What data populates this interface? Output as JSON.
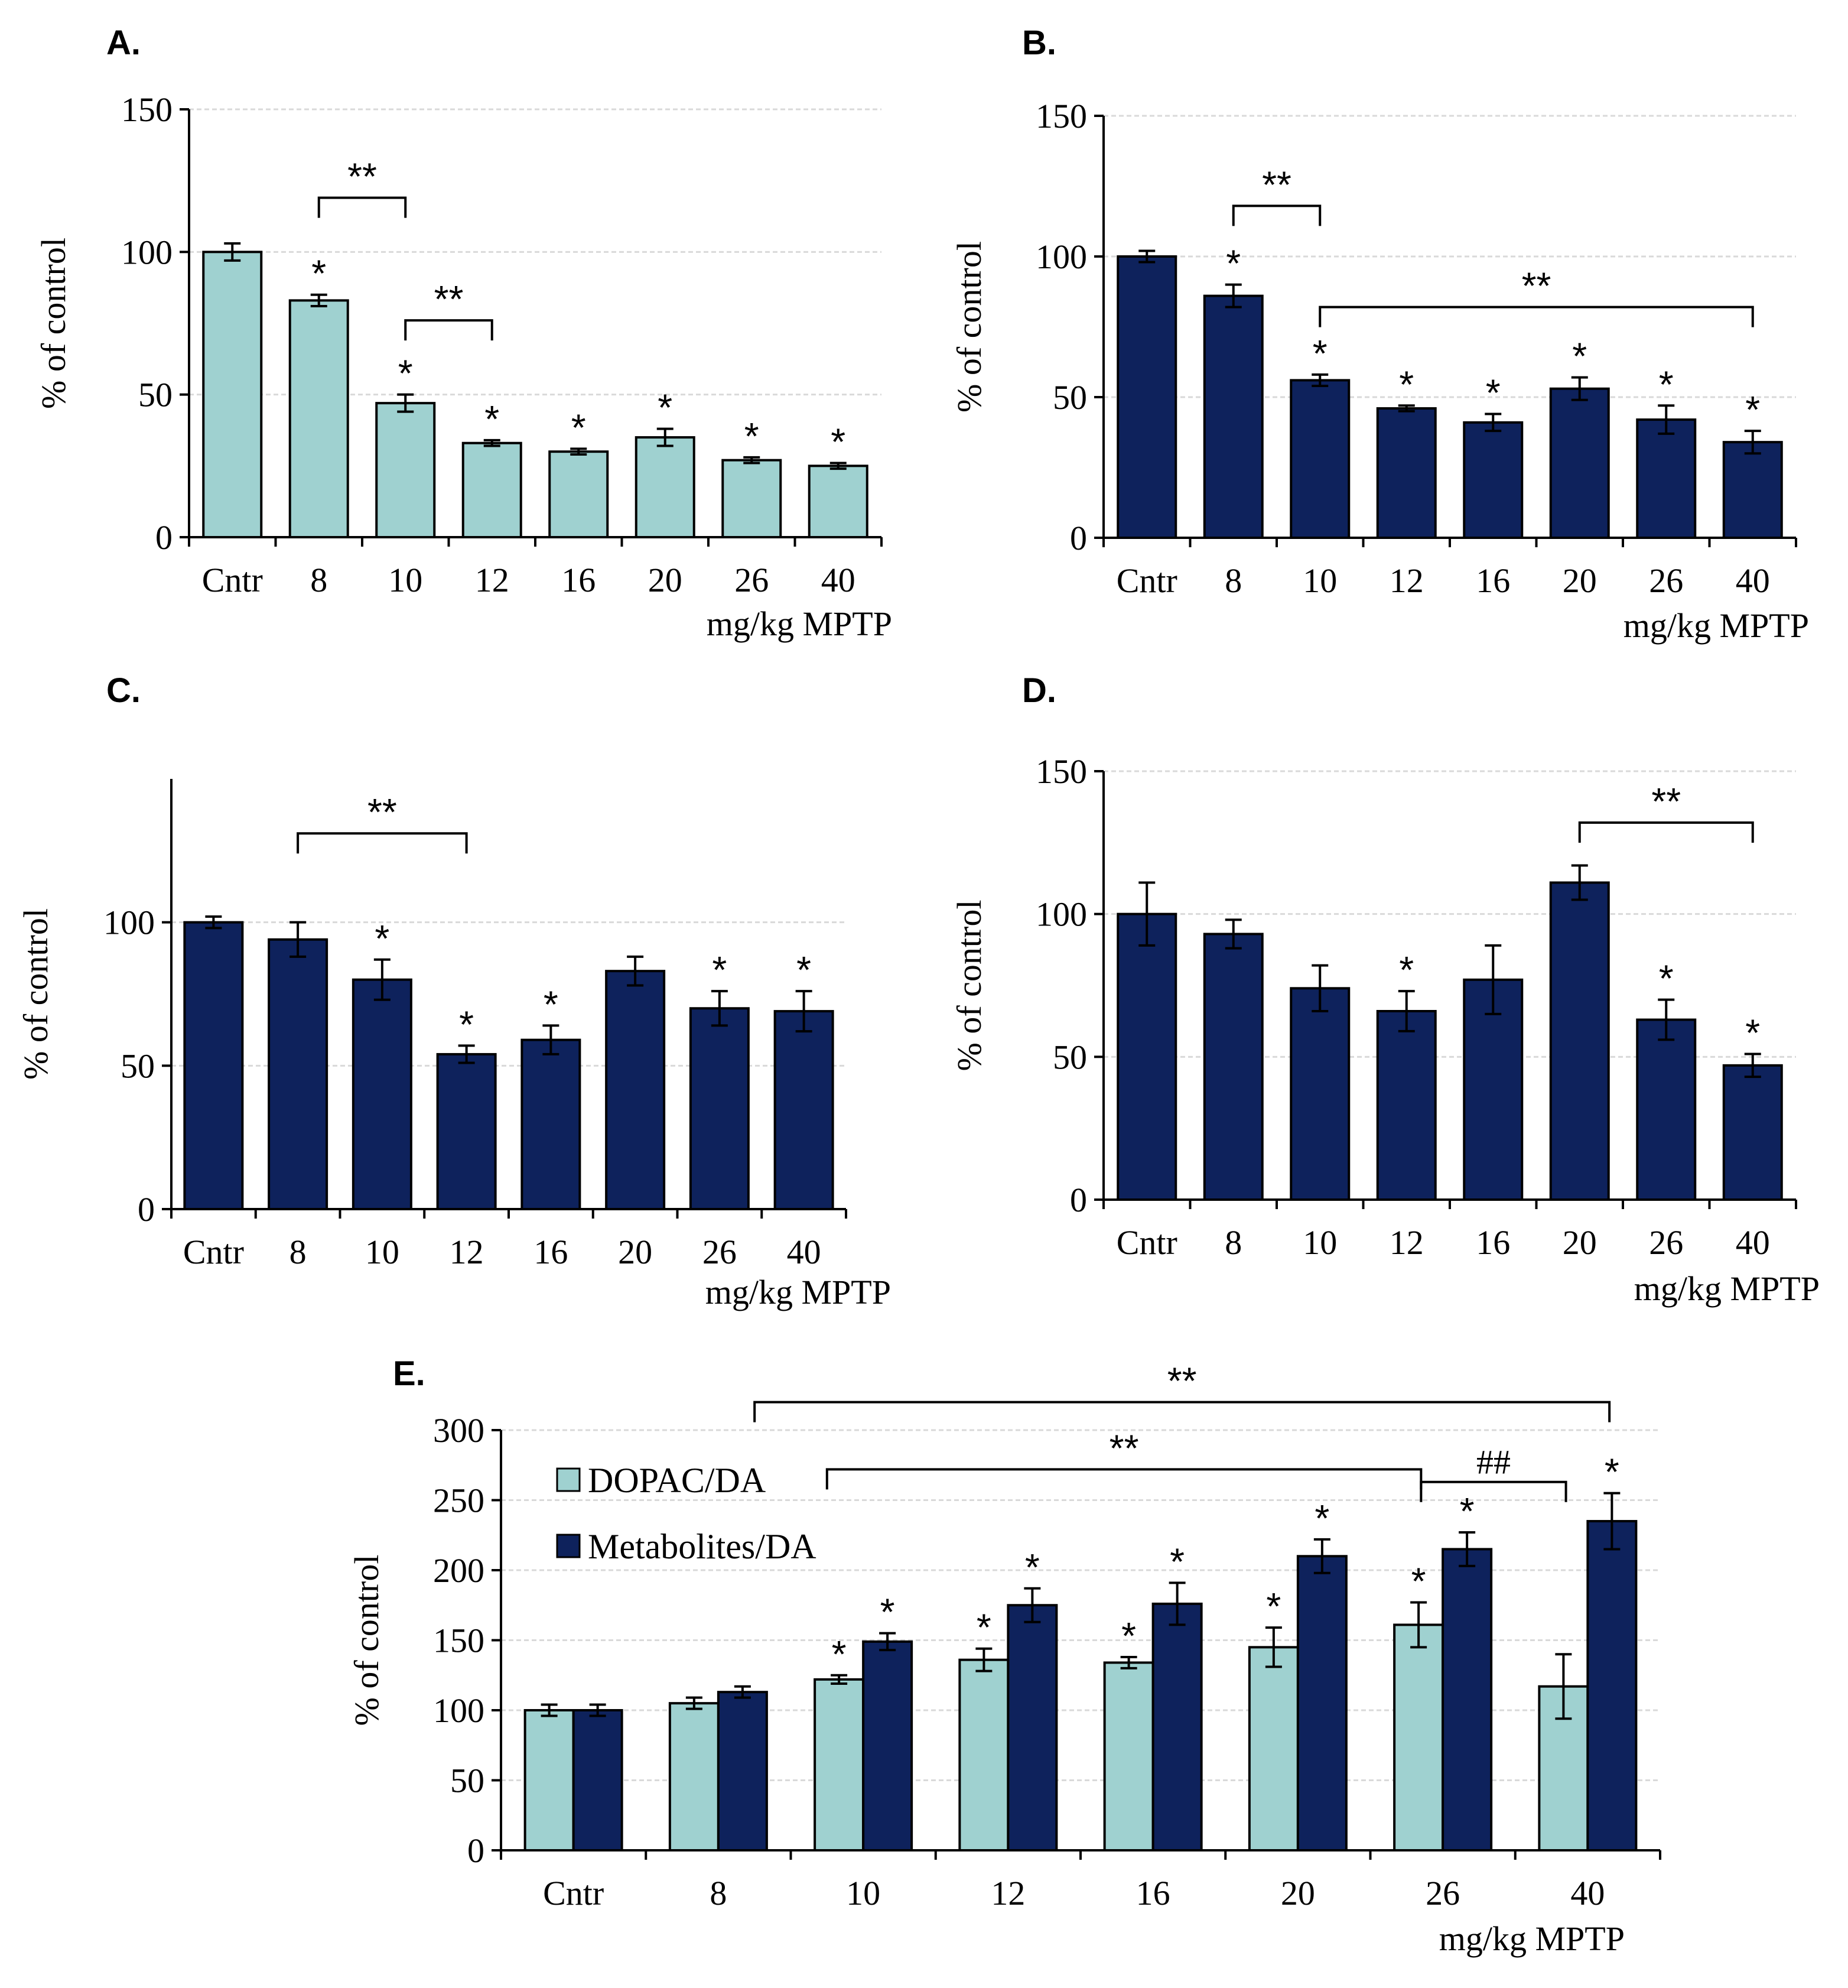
{
  "colors": {
    "dopac": "#9fd1d0",
    "metab": "#0e225c",
    "border": "#000000"
  },
  "chart_data": [
    {
      "type": "bar",
      "panel": "A.",
      "categories": [
        "Cntr",
        "8",
        "10",
        "12",
        "16",
        "20",
        "26",
        "40"
      ],
      "series": [
        {
          "name": "value",
          "color": "#9fd1d0",
          "values": [
            100,
            83,
            47,
            33,
            30,
            35,
            27,
            25
          ],
          "errors": [
            3,
            2,
            3,
            1,
            1,
            3,
            1,
            1
          ]
        }
      ],
      "ylabel": "% of control",
      "xlabel": "mg/kg MPTP",
      "ylim": [
        0,
        150
      ],
      "yticks": [
        "0",
        "50",
        "100",
        "150"
      ],
      "stars": [
        {
          "cat": 1,
          "text": "*"
        },
        {
          "cat": 2,
          "text": "*"
        },
        {
          "cat": 3,
          "text": "*"
        },
        {
          "cat": 4,
          "text": "*"
        },
        {
          "cat": 5,
          "text": "*"
        },
        {
          "cat": 6,
          "text": "*"
        },
        {
          "cat": 7,
          "text": "*"
        }
      ],
      "brackets": [
        {
          "from": 1,
          "to": 2,
          "y": 119,
          "text": "**"
        },
        {
          "from": 2,
          "to": 3,
          "y": 76,
          "text": "**"
        }
      ]
    },
    {
      "type": "bar",
      "panel": "B.",
      "categories": [
        "Cntr",
        "8",
        "10",
        "12",
        "16",
        "20",
        "26",
        "40"
      ],
      "series": [
        {
          "name": "value",
          "color": "#0e225c",
          "values": [
            100,
            86,
            56,
            46,
            41,
            53,
            42,
            34
          ],
          "errors": [
            2,
            4,
            2,
            1,
            3,
            4,
            5,
            4
          ]
        }
      ],
      "ylabel": "% of control",
      "xlabel": "mg/kg MPTP",
      "ylim": [
        0,
        150
      ],
      "yticks": [
        "0",
        "50",
        "100",
        "150"
      ],
      "stars": [
        {
          "cat": 1,
          "text": "*"
        },
        {
          "cat": 2,
          "text": "*"
        },
        {
          "cat": 3,
          "text": "*"
        },
        {
          "cat": 4,
          "text": "*"
        },
        {
          "cat": 5,
          "text": "*"
        },
        {
          "cat": 6,
          "text": "*"
        },
        {
          "cat": 7,
          "text": "*"
        }
      ],
      "brackets": [
        {
          "from": 1,
          "to": 2,
          "y": 118,
          "text": "**"
        },
        {
          "from": 2,
          "to": 7,
          "y": 82,
          "text": "**"
        }
      ]
    },
    {
      "type": "bar",
      "panel": "C.",
      "categories": [
        "Cntr",
        "8",
        "10",
        "12",
        "16",
        "20",
        "26",
        "40"
      ],
      "series": [
        {
          "name": "value",
          "color": "#0e225c",
          "values": [
            100,
            94,
            80,
            54,
            59,
            83,
            70,
            69
          ],
          "errors": [
            2,
            6,
            7,
            3,
            5,
            5,
            6,
            7
          ]
        }
      ],
      "ylabel": "% of control",
      "xlabel": "mg/kg MPTP",
      "ylim": [
        0,
        150
      ],
      "yticks": [
        "0",
        "50",
        "100"
      ],
      "stars": [
        {
          "cat": 2,
          "text": "*"
        },
        {
          "cat": 3,
          "text": "*"
        },
        {
          "cat": 4,
          "text": "*"
        },
        {
          "cat": 6,
          "text": "*"
        },
        {
          "cat": 7,
          "text": "*"
        }
      ],
      "brackets": [
        {
          "from": 1,
          "to": 3,
          "y": 131,
          "text": "**"
        }
      ]
    },
    {
      "type": "bar",
      "panel": "D.",
      "categories": [
        "Cntr",
        "8",
        "10",
        "12",
        "16",
        "20",
        "26",
        "40"
      ],
      "series": [
        {
          "name": "value",
          "color": "#0e225c",
          "values": [
            100,
            93,
            74,
            66,
            77,
            111,
            63,
            47
          ],
          "errors": [
            11,
            5,
            8,
            7,
            12,
            6,
            7,
            4
          ]
        }
      ],
      "ylabel": "% of control",
      "xlabel": "mg/kg MPTP",
      "ylim": [
        0,
        150
      ],
      "yticks": [
        "0",
        "50",
        "100",
        "150"
      ],
      "stars": [
        {
          "cat": 3,
          "text": "*"
        },
        {
          "cat": 6,
          "text": "*"
        },
        {
          "cat": 7,
          "text": "*"
        }
      ],
      "brackets": [
        {
          "from": 5,
          "to": 7,
          "y": 132,
          "text": "**"
        }
      ]
    },
    {
      "type": "bar",
      "panel": "E.",
      "categories": [
        "Cntr",
        "8",
        "10",
        "12",
        "16",
        "20",
        "26",
        "40"
      ],
      "series": [
        {
          "name": "DOPAC/DA",
          "color": "#9fd1d0",
          "values": [
            100,
            105,
            122,
            136,
            134,
            145,
            161,
            117
          ],
          "errors": [
            4,
            4,
            3,
            8,
            4,
            14,
            16,
            23
          ]
        },
        {
          "name": "Metabolites/DA",
          "color": "#0e225c",
          "values": [
            100,
            113,
            149,
            175,
            176,
            210,
            215,
            235
          ],
          "errors": [
            4,
            4,
            6,
            12,
            15,
            12,
            12,
            20
          ]
        }
      ],
      "ylabel": "% of control",
      "xlabel": "mg/kg MPTP",
      "ylim": [
        0,
        300
      ],
      "yticks": [
        "0",
        "50",
        "100",
        "150",
        "200",
        "250",
        "300"
      ],
      "legend": {
        "position": "top-left",
        "entries": [
          "DOPAC/DA",
          "Metabolites/DA"
        ]
      },
      "stars": [
        {
          "cat": 2,
          "series": 0,
          "text": "*"
        },
        {
          "cat": 2,
          "series": 1,
          "text": "*"
        },
        {
          "cat": 3,
          "series": 0,
          "text": "*"
        },
        {
          "cat": 3,
          "series": 1,
          "text": "*"
        },
        {
          "cat": 4,
          "series": 0,
          "text": "*"
        },
        {
          "cat": 4,
          "series": 1,
          "text": "*"
        },
        {
          "cat": 5,
          "series": 0,
          "text": "*"
        },
        {
          "cat": 5,
          "series": 1,
          "text": "*"
        },
        {
          "cat": 6,
          "series": 0,
          "text": "*"
        },
        {
          "cat": 6,
          "series": 1,
          "text": "*"
        },
        {
          "cat": 7,
          "series": 1,
          "text": "*"
        }
      ],
      "brackets": [
        {
          "from": 1.25,
          "to": 7.15,
          "y": 320,
          "text": "**"
        },
        {
          "from": 1.75,
          "to": 5.85,
          "y": 272,
          "text": "**"
        },
        {
          "from": 5.85,
          "to": 6.85,
          "y": 263,
          "text": "##"
        }
      ]
    }
  ]
}
